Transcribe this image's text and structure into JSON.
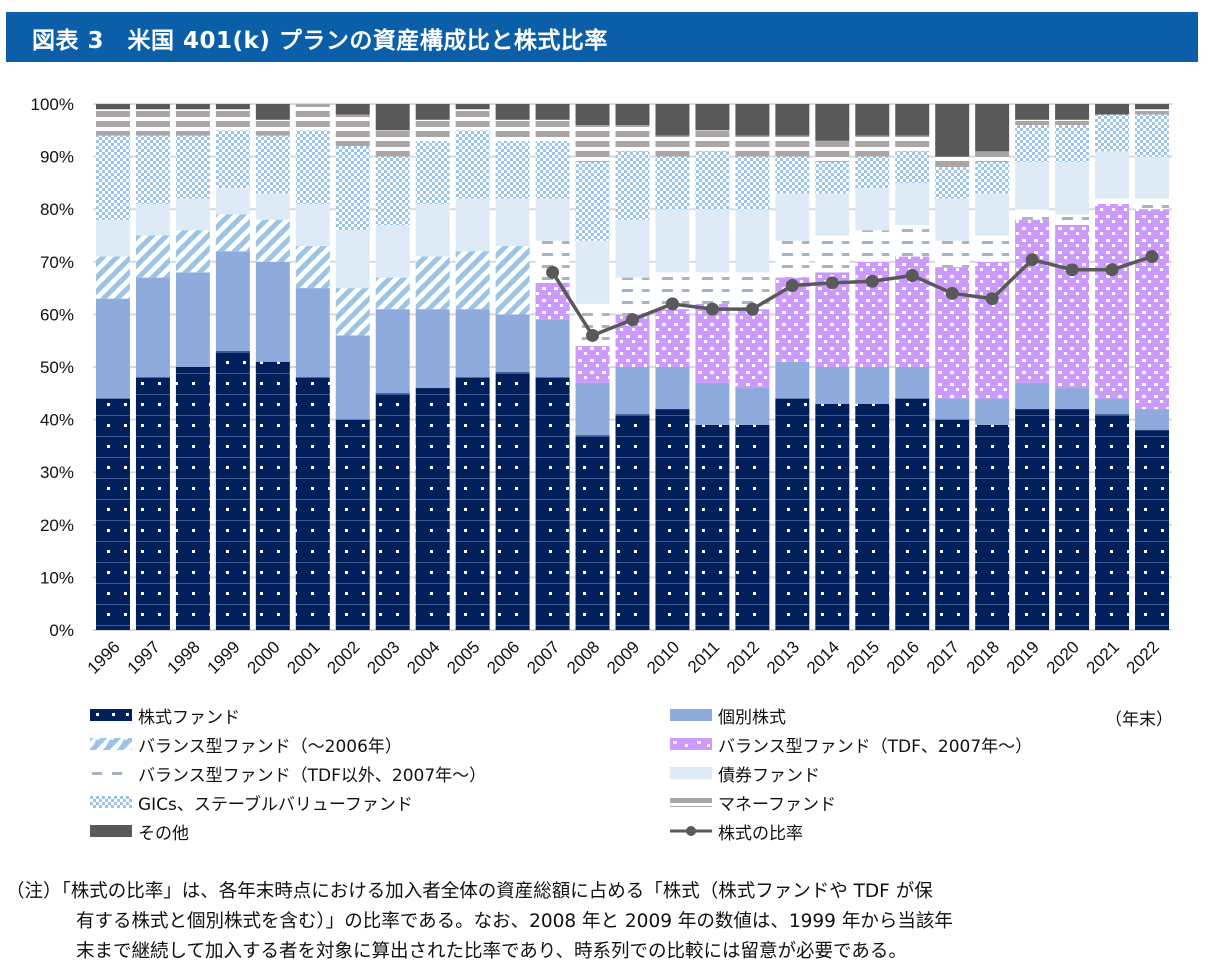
{
  "header": {
    "title": "図表 3　米国 401(k) プランの資産構成比と株式比率"
  },
  "colors": {
    "equity_funds": "#001f5b",
    "company_stock": "#8faadc",
    "balanced_pre2006": "#9dc3e6",
    "tdf": "#cc99ff",
    "balanced_non_tdf": "#a6b4c8",
    "bond_funds": "#deebf7",
    "gics_stable": "#9dc3e6",
    "money_funds": "#aaa6a6",
    "other": "#595959",
    "equity_ratio_line": "#595959",
    "grid": "#d9d9d9",
    "title_bar": "#0a5fa8"
  },
  "chart_data": {
    "type": "bar",
    "stacked": true,
    "title": "米国 401(k) プランの資産構成比と株式比率",
    "xlabel": "",
    "ylabel": "",
    "ylim": [
      0,
      100
    ],
    "yticks": [
      "0%",
      "10%",
      "20%",
      "30%",
      "40%",
      "50%",
      "60%",
      "70%",
      "80%",
      "90%",
      "100%"
    ],
    "grid": true,
    "x_unit_label": "（年末）",
    "categories": [
      "1996",
      "1997",
      "1998",
      "1999",
      "2000",
      "2001",
      "2002",
      "2003",
      "2004",
      "2005",
      "2006",
      "2007",
      "2008",
      "2009",
      "2010",
      "2011",
      "2012",
      "2013",
      "2014",
      "2015",
      "2016",
      "2017",
      "2018",
      "2019",
      "2020",
      "2021",
      "2022"
    ],
    "series": [
      {
        "key": "equity_funds",
        "name": "株式ファンド",
        "values": [
          44,
          48,
          50,
          53,
          51,
          48,
          40,
          45,
          46,
          48,
          49,
          48,
          37,
          41,
          42,
          39,
          39,
          44,
          43,
          43,
          44,
          40,
          39,
          42,
          42,
          41,
          38
        ]
      },
      {
        "key": "company_stock",
        "name": "個別株式",
        "values": [
          19,
          19,
          18,
          19,
          19,
          17,
          16,
          16,
          15,
          13,
          11,
          11,
          10,
          9,
          8,
          8,
          7,
          7,
          7,
          7,
          6,
          4,
          5,
          5,
          4,
          3,
          4
        ]
      },
      {
        "key": "balanced_pre2006",
        "name": "バランス型ファンド（～2006年）",
        "values": [
          8,
          8,
          8,
          7,
          8,
          8,
          9,
          6,
          10,
          11,
          13,
          0,
          0,
          0,
          0,
          0,
          0,
          0,
          0,
          0,
          0,
          0,
          0,
          0,
          0,
          0,
          0
        ]
      },
      {
        "key": "tdf",
        "name": "バランス型ファンド（TDF、2007年～）",
        "values": [
          0,
          0,
          0,
          0,
          0,
          0,
          0,
          0,
          0,
          0,
          0,
          7,
          7,
          10,
          11,
          15,
          15,
          16,
          18,
          20,
          21,
          25,
          26,
          31,
          31,
          37,
          38
        ]
      },
      {
        "key": "balanced_non_tdf",
        "name": "バランス型ファンド（TDF以外、2007年～）",
        "values": [
          0,
          0,
          0,
          0,
          0,
          0,
          0,
          0,
          0,
          0,
          0,
          8,
          8,
          7,
          7,
          6,
          7,
          7,
          7,
          6,
          6,
          5,
          5,
          2,
          2,
          1,
          2
        ]
      },
      {
        "key": "bond_funds",
        "name": "債券ファンド",
        "values": [
          7,
          6,
          6,
          5,
          5,
          8,
          11,
          10,
          10,
          10,
          9,
          8,
          12,
          11,
          12,
          12,
          12,
          9,
          8,
          8,
          8,
          8,
          8,
          9,
          10,
          9,
          8
        ]
      },
      {
        "key": "gics_stable",
        "name": "GICs、ステーブルバリューファンド",
        "values": [
          16,
          13,
          12,
          11,
          11,
          14,
          16,
          13,
          12,
          13,
          11,
          11,
          15,
          13,
          10,
          11,
          10,
          7,
          6,
          6,
          6,
          6,
          6,
          7,
          7,
          7,
          8
        ]
      },
      {
        "key": "money_funds",
        "name": "マネーファンド",
        "values": [
          5,
          5,
          5,
          4,
          3,
          5,
          6,
          5,
          4,
          4,
          4,
          4,
          7,
          5,
          4,
          4,
          4,
          4,
          4,
          4,
          3,
          2,
          2,
          1,
          1,
          0,
          1
        ]
      },
      {
        "key": "other",
        "name": "その他",
        "values": [
          1,
          1,
          1,
          1,
          3,
          0,
          2,
          5,
          3,
          1,
          3,
          3,
          4,
          4,
          6,
          5,
          6,
          6,
          7,
          6,
          6,
          10,
          9,
          3,
          3,
          2,
          1
        ]
      }
    ],
    "line": {
      "key": "equity_ratio",
      "name": "株式の比率",
      "x": [
        "2007",
        "2008",
        "2009",
        "2010",
        "2011",
        "2012",
        "2013",
        "2014",
        "2015",
        "2016",
        "2017",
        "2018",
        "2019",
        "2020",
        "2021",
        "2022"
      ],
      "values": [
        68,
        56,
        59,
        62,
        61,
        61,
        65.5,
        66,
        66.3,
        67.4,
        64,
        63,
        70.4,
        68.5,
        68.5,
        71
      ]
    },
    "legend_placement": "bottom"
  },
  "legend": {
    "items": [
      {
        "key": "equity_funds",
        "label": "株式ファンド"
      },
      {
        "key": "company_stock",
        "label": "個別株式"
      },
      {
        "key": "balanced_pre2006",
        "label": "バランス型ファンド（～2006年）"
      },
      {
        "key": "tdf",
        "label": "バランス型ファンド（TDF、2007年～）"
      },
      {
        "key": "balanced_non_tdf",
        "label": "バランス型ファンド（TDF以外、2007年～）"
      },
      {
        "key": "bond_funds",
        "label": "債券ファンド"
      },
      {
        "key": "gics_stable",
        "label": "GICs、ステーブルバリューファンド"
      },
      {
        "key": "money_funds",
        "label": "マネーファンド"
      },
      {
        "key": "other",
        "label": "その他"
      },
      {
        "key": "equity_ratio",
        "label": "株式の比率"
      }
    ],
    "unit_label": "（年末）"
  },
  "note": {
    "lines": [
      "（注）「株式の比率」は、各年末時点における加入者全体の資産総額に占める「株式（株式ファンドや TDF が保",
      "有する株式と個別株式を含む）」の比率である。なお、2008 年と 2009 年の数値は、1999 年から当該年",
      "末まで継続して加入する者を対象に算出された比率であり、時系列での比較には留意が必要である。"
    ]
  }
}
